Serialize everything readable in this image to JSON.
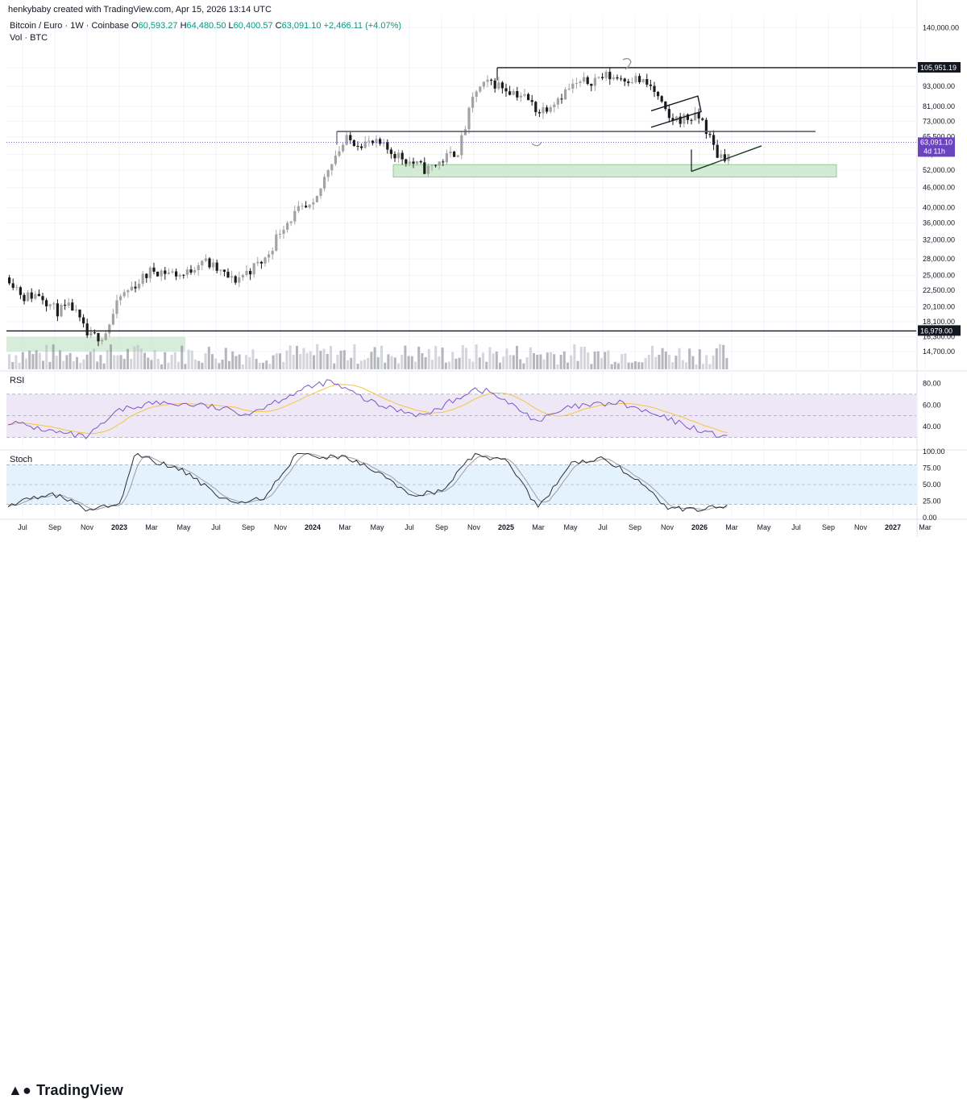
{
  "header": {
    "created_by": "henkybaby created with TradingView.com, Apr 15, 2026 13:14 UTC",
    "symbol_line": "Bitcoin / Euro · 1W · Coinbase",
    "ohlc": {
      "o_key": "O",
      "o": "60,593.27",
      "h_key": "H",
      "h": "64,480.50",
      "l_key": "L",
      "l": "60,400.57",
      "c_key": "C",
      "c": "63,091.10",
      "change": "+2,466.11 (+4.07%)"
    },
    "vol_line": "Vol · BTC"
  },
  "panes": {
    "rsi_label": "RSI",
    "stoch_label": "Stoch"
  },
  "footer": {
    "logo_text": "TradingView"
  },
  "colors": {
    "up": "#a3a3a3",
    "down": "#1c1c1c",
    "accent": "#6b43c1",
    "rsi": "#7e57c2",
    "rsi_ma": "#f5c542",
    "rsi_band": "#ede7f6",
    "stoch_band": "#e3f2fd",
    "zone": "#c8e6c9"
  },
  "chart_data": [
    {
      "type": "candlestick",
      "title": "Bitcoin / Euro · 1W · Coinbase",
      "scale": "log",
      "ylim": [
        13000,
        150000
      ],
      "y_ticks": [
        "140,000.00",
        "105,951.19",
        "93,000.00",
        "81,000.00",
        "73,000.00",
        "65,500.00",
        "58,000.00",
        "52,000.00",
        "46,000.00",
        "40,000.00",
        "36,000.00",
        "32,000.00",
        "28,000.00",
        "25,000.00",
        "22,500.00",
        "20,100.00",
        "18,100.00",
        "16,979.00",
        "16,300.00",
        "14,700.00"
      ],
      "x_ticks": [
        "Jul",
        "Sep",
        "Nov",
        "2023",
        "Mar",
        "May",
        "Jul",
        "Sep",
        "Nov",
        "2024",
        "Mar",
        "May",
        "Jul",
        "Sep",
        "Nov",
        "2025",
        "Mar",
        "May",
        "Jul",
        "Sep",
        "Nov",
        "2026",
        "Mar",
        "May",
        "Jul",
        "Sep",
        "Nov",
        "2027",
        "Mar"
      ],
      "price_badge": {
        "value": "63,091.10",
        "countdown": "4d 11h"
      },
      "levels": [
        {
          "label": "105,951.19",
          "value": 105951.19
        },
        {
          "label": "16,979.00",
          "value": 16979
        }
      ],
      "volume": "present",
      "series_close": [
        {
          "d": "2022-06",
          "c": 25000
        },
        {
          "d": "2022-07",
          "c": 21500
        },
        {
          "d": "2022-08",
          "c": 22000
        },
        {
          "d": "2022-09",
          "c": 19500
        },
        {
          "d": "2022-10",
          "c": 20000
        },
        {
          "d": "2022-11",
          "c": 16200
        },
        {
          "d": "2022-12",
          "c": 16500
        },
        {
          "d": "2023-01",
          "c": 21500
        },
        {
          "d": "2023-03",
          "c": 26000
        },
        {
          "d": "2023-05",
          "c": 25000
        },
        {
          "d": "2023-06",
          "c": 28000
        },
        {
          "d": "2023-08",
          "c": 24000
        },
        {
          "d": "2023-10",
          "c": 28000
        },
        {
          "d": "2023-11",
          "c": 35000
        },
        {
          "d": "2023-12",
          "c": 39000
        },
        {
          "d": "2024-01",
          "c": 40000
        },
        {
          "d": "2024-02",
          "c": 55000
        },
        {
          "d": "2024-03",
          "c": 64000
        },
        {
          "d": "2024-05",
          "c": 62000
        },
        {
          "d": "2024-07",
          "c": 55000
        },
        {
          "d": "2024-08",
          "c": 52000
        },
        {
          "d": "2024-10",
          "c": 60000
        },
        {
          "d": "2024-11",
          "c": 90000
        },
        {
          "d": "2024-12",
          "c": 96000
        },
        {
          "d": "2025-02",
          "c": 87000
        },
        {
          "d": "2025-03",
          "c": 78000
        },
        {
          "d": "2025-05",
          "c": 93000
        },
        {
          "d": "2025-07",
          "c": 100000
        },
        {
          "d": "2025-09",
          "c": 98000
        },
        {
          "d": "2025-10",
          "c": 92000
        },
        {
          "d": "2025-11",
          "c": 74000
        },
        {
          "d": "2026-01",
          "c": 75000
        },
        {
          "d": "2026-02",
          "c": 58000
        },
        {
          "d": "2026-03",
          "c": 57000
        },
        {
          "d": "2026-04",
          "c": 63091.1
        }
      ]
    },
    {
      "type": "line",
      "title": "RSI",
      "ylim": [
        20,
        90
      ],
      "y_ticks": [
        "80.00",
        "60.00",
        "40.00"
      ],
      "bands": {
        "upper": 70,
        "lower": 30
      },
      "series": [
        {
          "x": [
            "2022-06",
            "2022-09",
            "2022-11",
            "2023-01",
            "2023-03",
            "2023-06",
            "2023-09",
            "2023-12",
            "2024-02",
            "2024-05",
            "2024-08",
            "2024-11",
            "2024-12",
            "2025-03",
            "2025-05",
            "2025-08",
            "2025-10",
            "2025-12",
            "2026-02",
            "2026-03",
            "2026-04"
          ],
          "values": [
            45,
            35,
            30,
            55,
            62,
            60,
            52,
            72,
            82,
            60,
            50,
            75,
            72,
            45,
            58,
            62,
            52,
            42,
            32,
            33,
            40
          ]
        }
      ]
    },
    {
      "type": "line",
      "title": "Stoch",
      "ylim": [
        0,
        100
      ],
      "y_ticks": [
        "100.00",
        "75.00",
        "50.00",
        "25.00",
        "0.00"
      ],
      "bands": {
        "upper": 80,
        "lower": 20
      },
      "series": [
        {
          "x": [
            "2022-06",
            "2022-09",
            "2022-11",
            "2023-01",
            "2023-02",
            "2023-05",
            "2023-08",
            "2023-10",
            "2023-12",
            "2024-03",
            "2024-05",
            "2024-07",
            "2024-09",
            "2024-11",
            "2025-01",
            "2025-03",
            "2025-05",
            "2025-07",
            "2025-09",
            "2025-11",
            "2026-01",
            "2026-03",
            "2026-04"
          ],
          "values": [
            20,
            35,
            12,
            20,
            95,
            70,
            20,
            30,
            95,
            90,
            70,
            35,
            40,
            95,
            85,
            15,
            80,
            92,
            60,
            15,
            12,
            20,
            25
          ]
        }
      ]
    }
  ]
}
